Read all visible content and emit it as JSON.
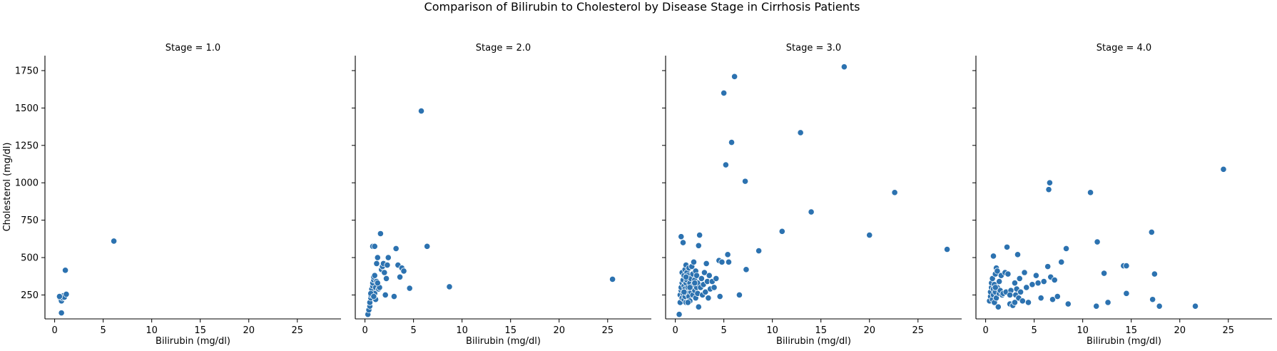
{
  "chart_data": {
    "type": "scatter",
    "title": "Comparison of Bilirubin to Cholesterol by Disease Stage in Cirrhosis Patients",
    "xlabel": "Bilirubin (mg/dl)",
    "ylabel": "Cholesterol (mg/dl)",
    "xlim": [
      -1,
      29.5
    ],
    "ylim": [
      90,
      1850
    ],
    "xticks": [
      0,
      5,
      10,
      15,
      20,
      25
    ],
    "yticks": [
      250,
      500,
      750,
      1000,
      1250,
      1500,
      1750
    ],
    "marker_color": "#2c72b0",
    "shared_y": true,
    "panels": [
      {
        "title": "Stage = 1.0",
        "points": [
          [
            0.6,
            225
          ],
          [
            0.7,
            210
          ],
          [
            0.8,
            230
          ],
          [
            0.9,
            245
          ],
          [
            1.0,
            235
          ],
          [
            1.2,
            255
          ],
          [
            0.7,
            130
          ],
          [
            1.1,
            415
          ],
          [
            6.1,
            610
          ],
          [
            0.5,
            240
          ]
        ]
      },
      {
        "title": "Stage = 2.0",
        "points": [
          [
            0.3,
            120
          ],
          [
            0.4,
            150
          ],
          [
            0.5,
            175
          ],
          [
            0.5,
            200
          ],
          [
            0.6,
            230
          ],
          [
            0.6,
            250
          ],
          [
            0.7,
            270
          ],
          [
            0.7,
            290
          ],
          [
            0.8,
            310
          ],
          [
            0.8,
            330
          ],
          [
            0.9,
            350
          ],
          [
            0.9,
            370
          ],
          [
            1.0,
            380
          ],
          [
            1.0,
            260
          ],
          [
            1.1,
            220
          ],
          [
            1.1,
            300
          ],
          [
            1.2,
            340
          ],
          [
            1.2,
            460
          ],
          [
            1.3,
            500
          ],
          [
            1.4,
            290
          ],
          [
            1.5,
            300
          ],
          [
            1.6,
            660
          ],
          [
            1.7,
            420
          ],
          [
            1.8,
            440
          ],
          [
            1.9,
            460
          ],
          [
            2.0,
            400
          ],
          [
            2.1,
            250
          ],
          [
            2.2,
            360
          ],
          [
            2.3,
            450
          ],
          [
            2.4,
            500
          ],
          [
            0.8,
            575
          ],
          [
            1.0,
            575
          ],
          [
            3.0,
            240
          ],
          [
            3.2,
            560
          ],
          [
            3.4,
            450
          ],
          [
            3.6,
            370
          ],
          [
            3.8,
            430
          ],
          [
            4.0,
            410
          ],
          [
            4.6,
            295
          ],
          [
            5.8,
            1480
          ],
          [
            6.4,
            575
          ],
          [
            8.7,
            305
          ],
          [
            25.5,
            355
          ],
          [
            0.6,
            260
          ],
          [
            0.9,
            240
          ],
          [
            1.3,
            330
          ]
        ]
      },
      {
        "title": "Stage = 3.0",
        "points": [
          [
            0.4,
            120
          ],
          [
            0.5,
            200
          ],
          [
            0.5,
            250
          ],
          [
            0.6,
            280
          ],
          [
            0.6,
            300
          ],
          [
            0.6,
            640
          ],
          [
            0.7,
            230
          ],
          [
            0.7,
            330
          ],
          [
            0.7,
            400
          ],
          [
            0.8,
            260
          ],
          [
            0.8,
            350
          ],
          [
            0.8,
            600
          ],
          [
            0.9,
            220
          ],
          [
            0.9,
            310
          ],
          [
            0.9,
            380
          ],
          [
            1.0,
            240
          ],
          [
            1.0,
            290
          ],
          [
            1.0,
            420
          ],
          [
            1.1,
            200
          ],
          [
            1.1,
            330
          ],
          [
            1.1,
            450
          ],
          [
            1.2,
            260
          ],
          [
            1.2,
            350
          ],
          [
            1.2,
            400
          ],
          [
            1.3,
            300
          ],
          [
            1.3,
            380
          ],
          [
            1.4,
            240
          ],
          [
            1.4,
            430
          ],
          [
            1.5,
            210
          ],
          [
            1.5,
            330
          ],
          [
            1.6,
            270
          ],
          [
            1.6,
            360
          ],
          [
            1.7,
            300
          ],
          [
            1.7,
            440
          ],
          [
            1.8,
            250
          ],
          [
            1.8,
            390
          ],
          [
            1.9,
            320
          ],
          [
            1.9,
            470
          ],
          [
            2.0,
            280
          ],
          [
            2.0,
            350
          ],
          [
            2.1,
            230
          ],
          [
            2.1,
            410
          ],
          [
            2.2,
            300
          ],
          [
            2.2,
            380
          ],
          [
            2.3,
            260
          ],
          [
            2.3,
            330
          ],
          [
            2.4,
            580
          ],
          [
            2.4,
            170
          ],
          [
            2.5,
            650
          ],
          [
            2.6,
            300
          ],
          [
            2.7,
            360
          ],
          [
            2.8,
            250
          ],
          [
            2.9,
            320
          ],
          [
            3.0,
            400
          ],
          [
            3.1,
            270
          ],
          [
            3.2,
            460
          ],
          [
            3.3,
            340
          ],
          [
            3.4,
            230
          ],
          [
            3.5,
            380
          ],
          [
            3.6,
            290
          ],
          [
            3.8,
            340
          ],
          [
            4.0,
            300
          ],
          [
            4.2,
            360
          ],
          [
            4.5,
            480
          ],
          [
            4.6,
            240
          ],
          [
            4.8,
            470
          ],
          [
            5.0,
            1600
          ],
          [
            5.2,
            1120
          ],
          [
            5.4,
            520
          ],
          [
            5.5,
            470
          ],
          [
            5.8,
            1270
          ],
          [
            6.1,
            1710
          ],
          [
            6.6,
            250
          ],
          [
            7.2,
            1010
          ],
          [
            7.3,
            420
          ],
          [
            8.6,
            545
          ],
          [
            11.0,
            675
          ],
          [
            12.9,
            1335
          ],
          [
            14.0,
            805
          ],
          [
            17.4,
            1775
          ],
          [
            20.0,
            650
          ],
          [
            22.6,
            935
          ],
          [
            28.0,
            555
          ],
          [
            1.3,
            200
          ],
          [
            0.9,
            270
          ],
          [
            2.0,
            330
          ],
          [
            1.1,
            370
          ],
          [
            1.5,
            300
          ]
        ]
      },
      {
        "title": "Stage = 4.0",
        "points": [
          [
            0.4,
            210
          ],
          [
            0.5,
            240
          ],
          [
            0.5,
            270
          ],
          [
            0.6,
            300
          ],
          [
            0.6,
            330
          ],
          [
            0.7,
            220
          ],
          [
            0.7,
            360
          ],
          [
            0.8,
            250
          ],
          [
            0.8,
            290
          ],
          [
            0.8,
            510
          ],
          [
            0.9,
            200
          ],
          [
            0.9,
            320
          ],
          [
            1.0,
            270
          ],
          [
            1.0,
            390
          ],
          [
            1.1,
            230
          ],
          [
            1.1,
            430
          ],
          [
            1.2,
            300
          ],
          [
            1.2,
            410
          ],
          [
            1.3,
            170
          ],
          [
            1.4,
            260
          ],
          [
            1.4,
            340
          ],
          [
            1.5,
            280
          ],
          [
            1.6,
            380
          ],
          [
            1.7,
            250
          ],
          [
            1.8,
            260
          ],
          [
            2.0,
            400
          ],
          [
            2.1,
            270
          ],
          [
            2.2,
            570
          ],
          [
            2.3,
            390
          ],
          [
            2.5,
            190
          ],
          [
            2.6,
            280
          ],
          [
            2.8,
            180
          ],
          [
            3.0,
            330
          ],
          [
            3.1,
            250
          ],
          [
            3.2,
            290
          ],
          [
            3.3,
            520
          ],
          [
            3.4,
            230
          ],
          [
            3.5,
            360
          ],
          [
            3.6,
            270
          ],
          [
            3.8,
            210
          ],
          [
            4.0,
            400
          ],
          [
            4.2,
            300
          ],
          [
            4.4,
            200
          ],
          [
            4.8,
            320
          ],
          [
            5.2,
            380
          ],
          [
            5.4,
            330
          ],
          [
            5.7,
            230
          ],
          [
            6.0,
            340
          ],
          [
            6.4,
            440
          ],
          [
            6.5,
            955
          ],
          [
            6.6,
            1000
          ],
          [
            6.7,
            370
          ],
          [
            6.9,
            220
          ],
          [
            7.1,
            350
          ],
          [
            7.4,
            240
          ],
          [
            7.8,
            470
          ],
          [
            8.3,
            560
          ],
          [
            8.5,
            190
          ],
          [
            10.8,
            935
          ],
          [
            11.4,
            175
          ],
          [
            11.5,
            605
          ],
          [
            12.2,
            395
          ],
          [
            12.6,
            200
          ],
          [
            14.2,
            445
          ],
          [
            14.5,
            445
          ],
          [
            14.5,
            260
          ],
          [
            17.1,
            670
          ],
          [
            17.2,
            220
          ],
          [
            17.4,
            390
          ],
          [
            17.9,
            175
          ],
          [
            21.6,
            175
          ],
          [
            24.5,
            1090
          ],
          [
            1.0,
            300
          ],
          [
            2.5,
            250
          ],
          [
            3.0,
            200
          ]
        ]
      }
    ]
  }
}
